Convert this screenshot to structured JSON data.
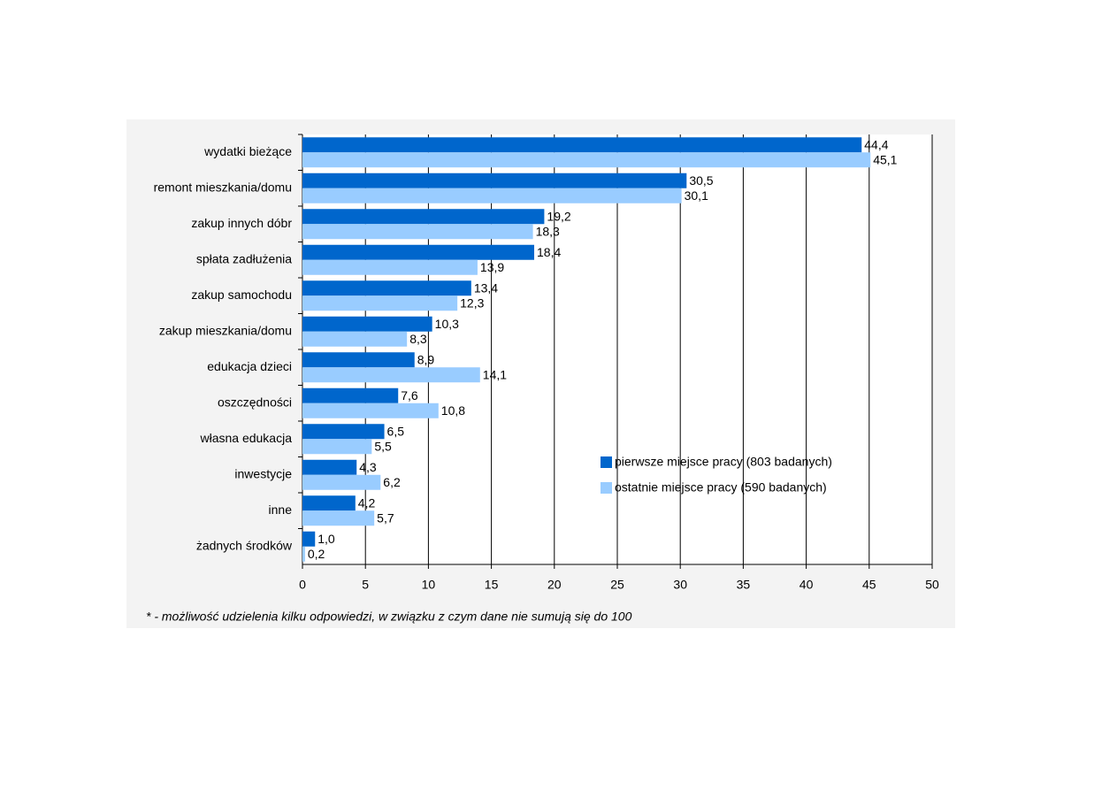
{
  "chart_data": {
    "type": "bar",
    "orientation": "horizontal",
    "categories": [
      "wydatki bieżące",
      "remont mieszkania/domu",
      "zakup innych dóbr",
      "spłata zadłużenia",
      "zakup samochodu",
      "zakup mieszkania/domu",
      "edukacja dzieci",
      "oszczędności",
      "własna edukacja",
      "inwestycje",
      "inne",
      "żadnych środków"
    ],
    "series": [
      {
        "name": "pierwsze miejsce pracy (803 badanych)",
        "color": "#0066cc",
        "values": [
          44.4,
          30.5,
          19.2,
          18.4,
          13.4,
          10.3,
          8.9,
          7.6,
          6.5,
          4.3,
          4.2,
          1.0
        ],
        "value_labels": [
          "44,4",
          "30,5",
          "19,2",
          "18,4",
          "13,4",
          "10,3",
          "8,9",
          "7,6",
          "6,5",
          "4,3",
          "4,2",
          "1,0"
        ]
      },
      {
        "name": "ostatnie miejsce pracy (590 badanych)",
        "color": "#99ccff",
        "values": [
          45.1,
          30.1,
          18.3,
          13.9,
          12.3,
          8.3,
          14.1,
          10.8,
          5.5,
          6.2,
          5.7,
          0.2
        ],
        "value_labels": [
          "45,1",
          "30,1",
          "18,3",
          "13,9",
          "12,3",
          "8,3",
          "14,1",
          "10,8",
          "5,5",
          "6,2",
          "5,7",
          "0,2"
        ]
      }
    ],
    "xlim": [
      0,
      50
    ],
    "xticks": [
      0,
      5,
      10,
      15,
      20,
      25,
      30,
      35,
      40,
      45,
      50
    ],
    "grid": true,
    "footnote": "* - możliwość udzielenia kilku odpowiedzi, w związku z czym dane nie sumują się do 100"
  }
}
